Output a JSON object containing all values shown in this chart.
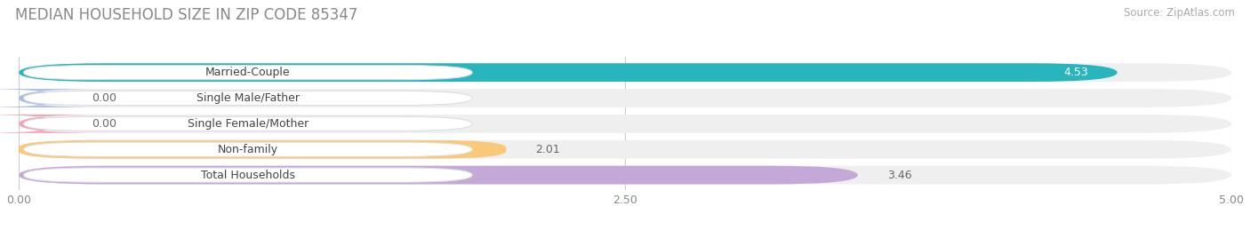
{
  "title": "MEDIAN HOUSEHOLD SIZE IN ZIP CODE 85347",
  "source": "Source: ZipAtlas.com",
  "categories": [
    "Married-Couple",
    "Single Male/Father",
    "Single Female/Mother",
    "Non-family",
    "Total Households"
  ],
  "values": [
    4.53,
    0.0,
    0.0,
    2.01,
    3.46
  ],
  "bar_colors": [
    "#29b5be",
    "#a8bce8",
    "#f4a0b5",
    "#f9c878",
    "#c3a8d8"
  ],
  "bar_bg_color": "#efefef",
  "xlim": [
    0,
    5.0
  ],
  "xticks": [
    0.0,
    2.5,
    5.0
  ],
  "xticklabels": [
    "0.00",
    "2.50",
    "5.00"
  ],
  "value_labels": [
    "4.53",
    "0.00",
    "0.00",
    "2.01",
    "3.46"
  ],
  "value_inside": [
    true,
    false,
    false,
    false,
    false
  ],
  "title_fontsize": 12,
  "source_fontsize": 8.5,
  "label_fontsize": 9,
  "value_fontsize": 9,
  "background_color": "#ffffff",
  "grid_color": "#cccccc",
  "bar_height": 0.72,
  "bar_spacing": 1.0
}
